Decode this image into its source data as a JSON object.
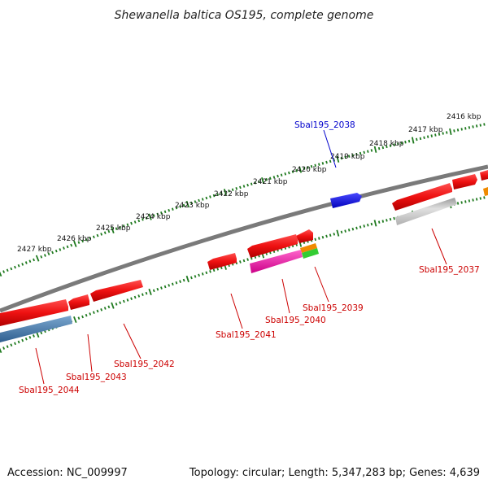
{
  "title": "Shewanella baltica OS195, complete genome",
  "footer": {
    "accession": "Accession: NC_009997",
    "summary": "Topology: circular; Length: 5,347,283 bp; Genes: 4,639"
  },
  "colors": {
    "backbone": "#7a7a7a",
    "ticks": "#1f7a1f",
    "gene_red": "#ee1111",
    "gene_blue": "#1a1aee",
    "gene_steel": "#4a7fb0",
    "gene_gray": "#b5b5b5",
    "gene_pink": "#ee22aa",
    "gene_orange": "#f08a00",
    "gene_green": "#33cc33",
    "label_red": "#cc0000",
    "label_blue": "#0000cc"
  },
  "scale_labels": [
    "2416 kbp",
    "2417 kbp",
    "2418 kbp",
    "2419 kbp",
    "2420 kbp",
    "2421 kbp",
    "2422 kbp",
    "2423 kbp",
    "2424 kbp",
    "2425 kbp",
    "2426 kbp",
    "2427 kbp"
  ],
  "gene_labels": [
    {
      "text": "Sbal195_2038",
      "color": "blue"
    },
    {
      "text": "Sbal195_2037",
      "color": "red"
    },
    {
      "text": "Sbal195_2039",
      "color": "red"
    },
    {
      "text": "Sbal195_2040",
      "color": "red"
    },
    {
      "text": "Sbal195_2041",
      "color": "red"
    },
    {
      "text": "Sbal195_2042",
      "color": "red"
    },
    {
      "text": "Sbal195_2043",
      "color": "red"
    },
    {
      "text": "Sbal195_2044",
      "color": "red"
    }
  ]
}
